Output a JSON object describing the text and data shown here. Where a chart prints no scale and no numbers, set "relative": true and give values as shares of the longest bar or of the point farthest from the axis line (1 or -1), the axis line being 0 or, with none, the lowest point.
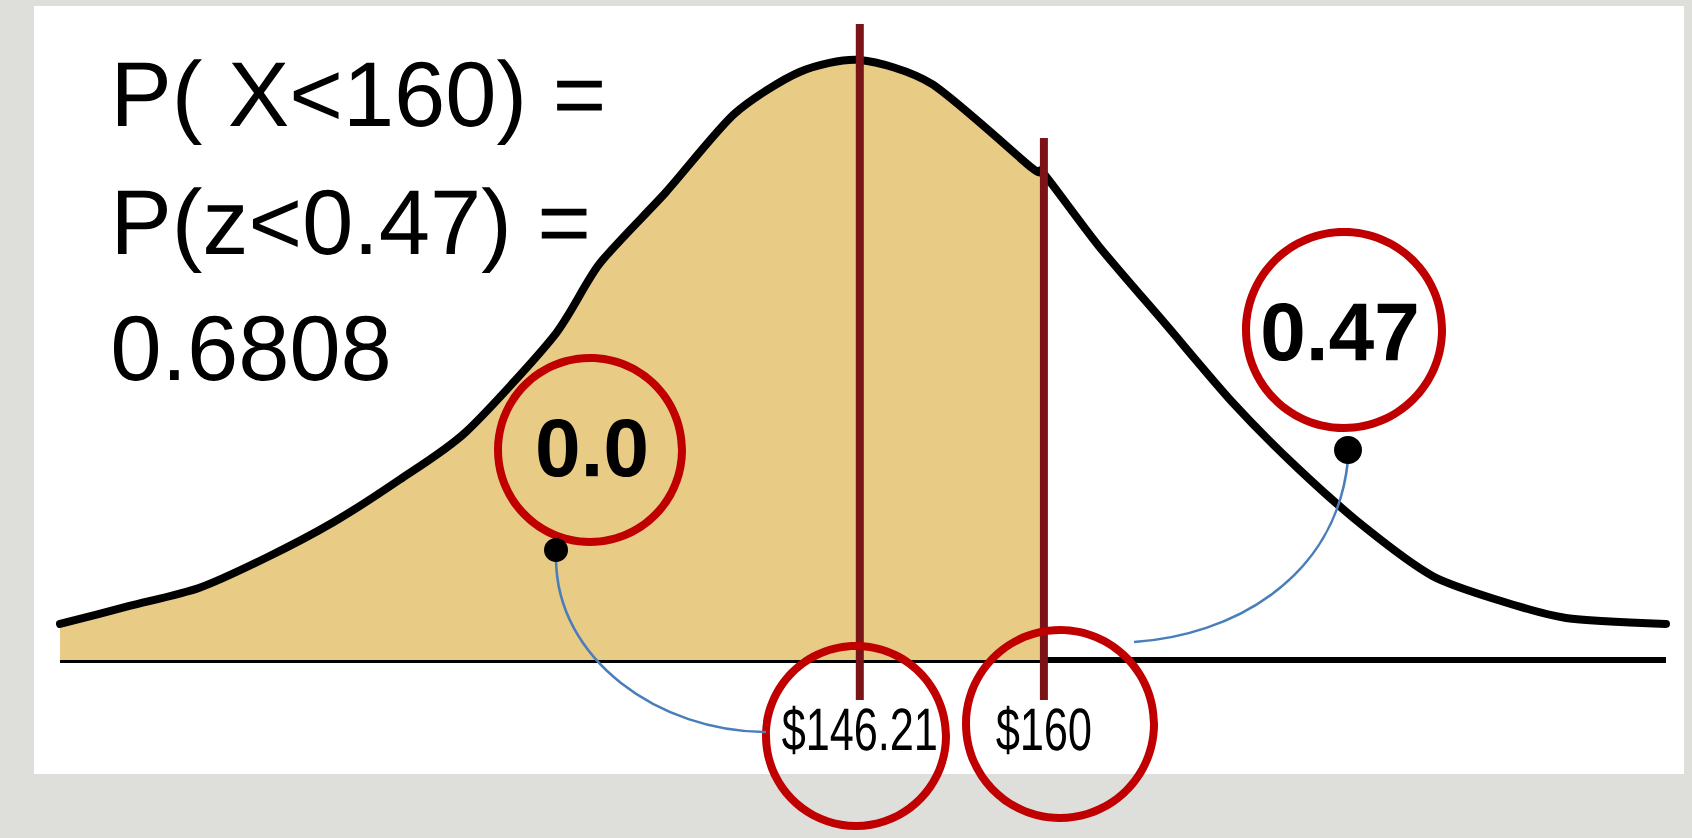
{
  "chart_data": {
    "type": "line",
    "relative": true,
    "xlim": [
      86.3,
      206.6
    ],
    "xticks": [
      {
        "value": 146.21,
        "label": "$146.21"
      },
      {
        "value": 160,
        "label": "$160"
      }
    ],
    "series": [
      {
        "type": "area",
        "color": "#e8cb85",
        "x": [
          86.3,
          91.5,
          96.7,
          101.7,
          106.8,
          111.7,
          116.7,
          123.3,
          126.7,
          131.7,
          136.8,
          141.7,
          146.21,
          151.6,
          159.1,
          160
        ],
        "values": [
          0.06,
          0.09,
          0.12,
          0.17,
          0.23,
          0.3,
          0.38,
          0.54,
          0.66,
          0.78,
          0.91,
          0.98,
          1,
          0.96,
          0.82,
          0.81
        ]
      },
      {
        "color": "#000000",
        "x": [
          86.3,
          91.5,
          96.7,
          101.7,
          106.8,
          111.7,
          116.7,
          123.3,
          126.7,
          131.7,
          136.8,
          141.7,
          146.21,
          151.6,
          159.1,
          160,
          164.1,
          169.1,
          174.1,
          179.0,
          184.1,
          189.1,
          194.0,
          199.1,
          206.6
        ],
        "values": [
          0.06,
          0.09,
          0.12,
          0.17,
          0.23,
          0.3,
          0.38,
          0.54,
          0.66,
          0.78,
          0.91,
          0.98,
          1,
          0.96,
          0.82,
          0.81,
          0.69,
          0.56,
          0.43,
          0.32,
          0.22,
          0.14,
          0.1,
          0.07,
          0.06
        ]
      }
    ],
    "ref_lines": [
      {
        "axis": "x",
        "value": 146.21,
        "color": "#7b1416"
      },
      {
        "axis": "x",
        "value": 160,
        "color": "#7b1416"
      }
    ],
    "annotations": [
      "P( X<160) =",
      "P(z<0.47) =",
      "0.6808",
      "0.0",
      "0.47"
    ]
  }
}
